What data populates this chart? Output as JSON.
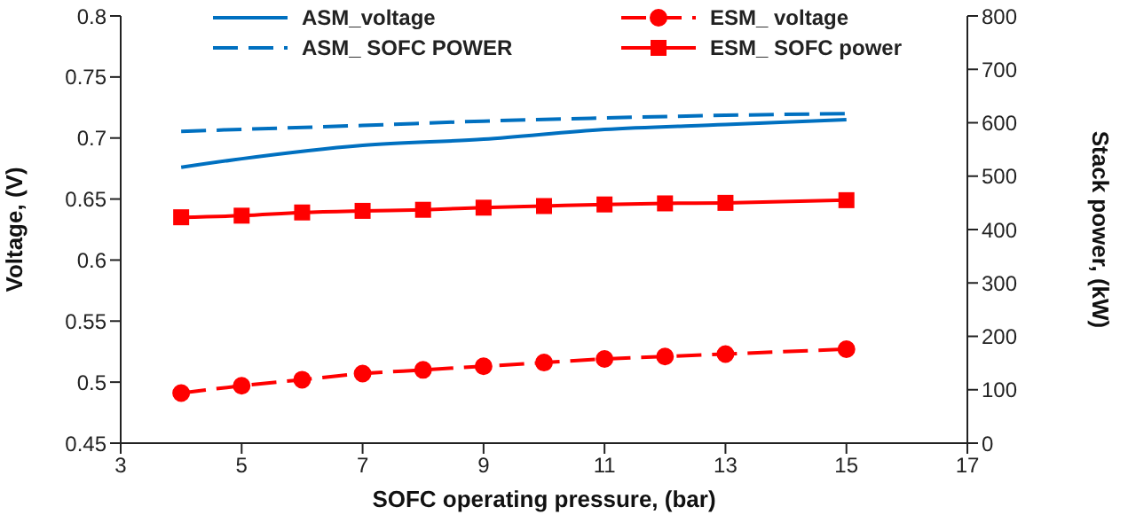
{
  "chart_data": {
    "type": "line",
    "xlabel": "SOFC operating pressure, (bar)",
    "ylabel": "Voltage, (V)",
    "y2label": "Stack power, (kW)",
    "xlim": [
      3,
      17
    ],
    "xticks": [
      3,
      5,
      7,
      9,
      11,
      13,
      15,
      17
    ],
    "ylim": [
      0.45,
      0.8
    ],
    "yticks": [
      0.45,
      0.5,
      0.55,
      0.6,
      0.65,
      0.7,
      0.75,
      0.8
    ],
    "y2lim": [
      0,
      800
    ],
    "y2ticks": [
      0,
      100,
      200,
      300,
      400,
      500,
      600,
      700,
      800
    ],
    "grid": false,
    "legend": "top",
    "series": [
      {
        "name": "ASM_voltage",
        "color": "#0070c0",
        "x": [
          4,
          5,
          7,
          9,
          11,
          13,
          15
        ],
        "values": [
          0.676,
          0.683,
          0.694,
          0.699,
          0.707,
          0.711,
          0.715
        ],
        "marker": "none",
        "line_style": "solid"
      },
      {
        "name": "ESM_ voltage",
        "color": "#ff0000",
        "x": [
          4,
          5,
          6,
          7,
          8,
          9,
          10,
          11,
          12,
          13,
          15
        ],
        "values": [
          0.491,
          0.497,
          0.502,
          0.507,
          0.51,
          0.513,
          0.516,
          0.519,
          0.521,
          0.523,
          0.527
        ],
        "marker": "circle",
        "line_style": "dashed"
      },
      {
        "name": "ASM_ SOFC POWER",
        "color": "#0070c0",
        "axis": "y2",
        "x": [
          4,
          7,
          9,
          11,
          13,
          15
        ],
        "values": [
          584,
          595,
          603,
          609,
          614,
          617
        ],
        "marker": "none",
        "line_style": "dashed"
      },
      {
        "name": "ESM_ SOFC power",
        "color": "#ff0000",
        "axis": "y2",
        "x": [
          4,
          5,
          6,
          7,
          8,
          9,
          10,
          11,
          12,
          13,
          15
        ],
        "values": [
          423,
          426,
          432,
          435,
          437,
          441,
          444,
          447,
          449,
          450,
          455
        ],
        "marker": "square",
        "line_style": "solid"
      }
    ]
  }
}
